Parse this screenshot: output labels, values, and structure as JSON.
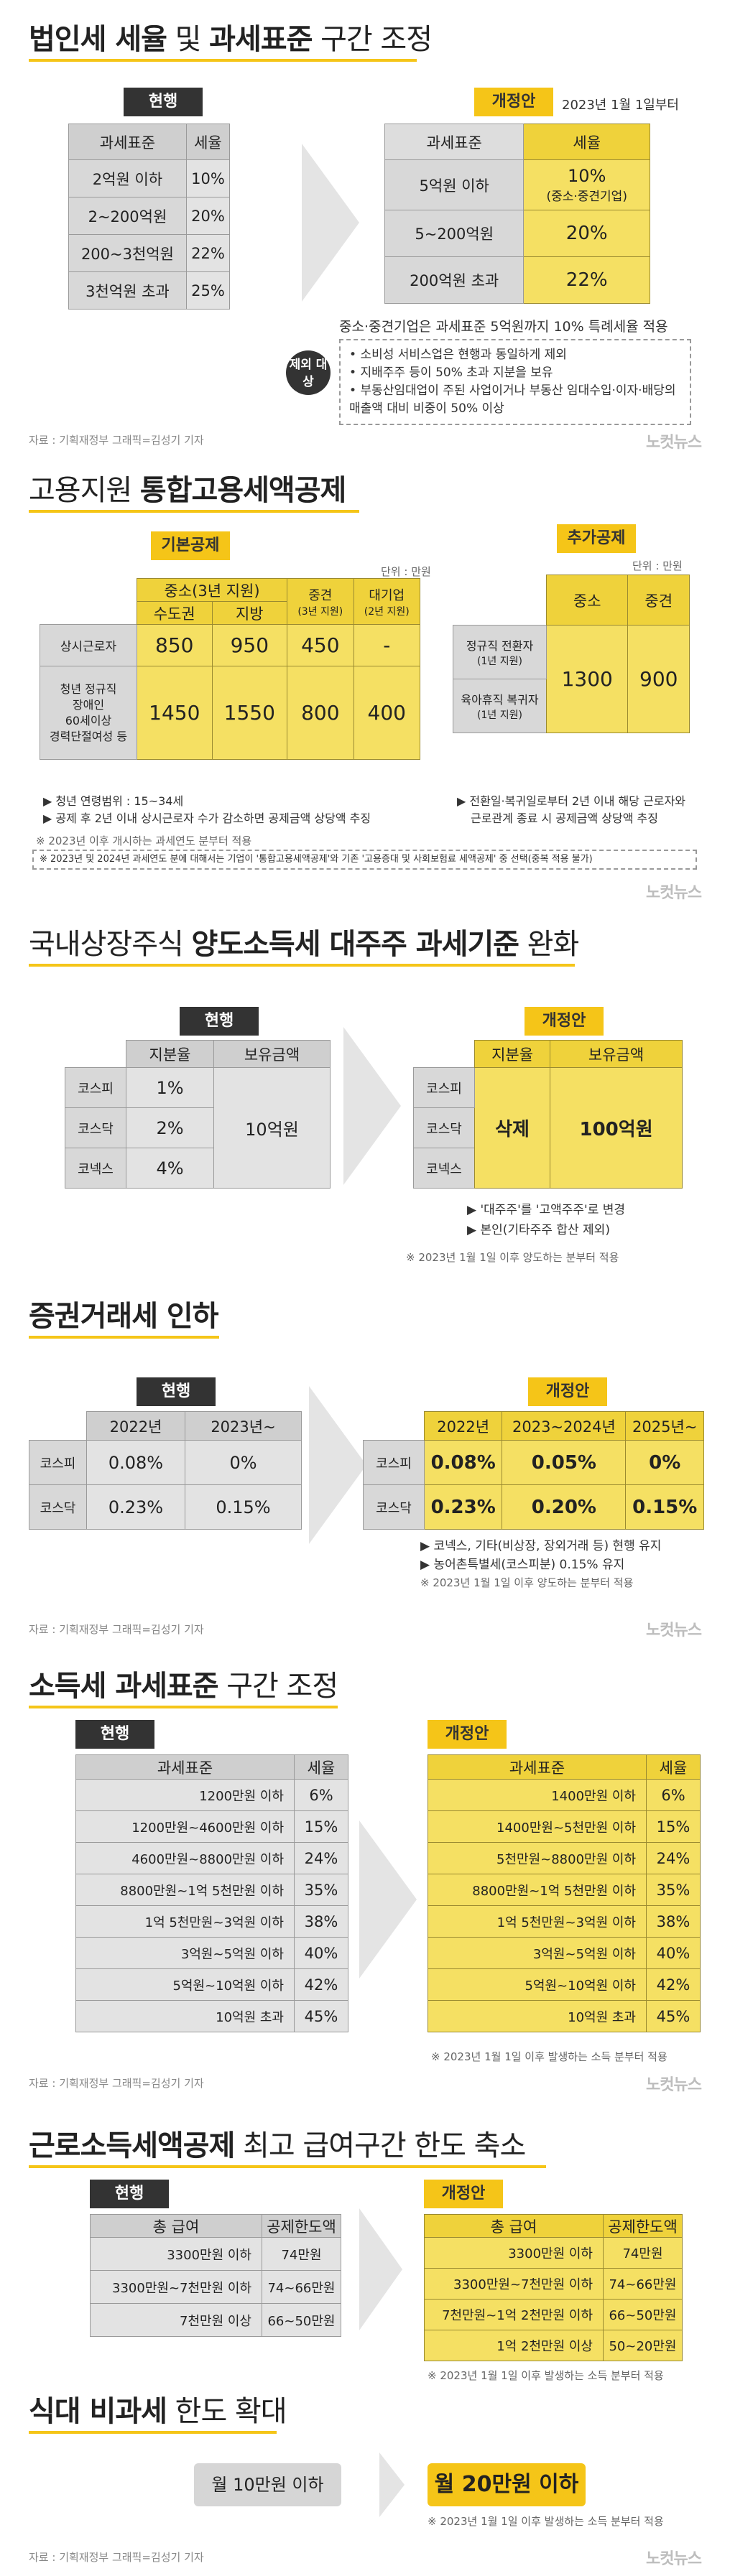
{
  "s1": {
    "title_b1": "법인세 세율",
    "title_n1": " 및 ",
    "title_b2": "과세표준",
    "title_n2": " 구간 조정",
    "cur_tag": "현행",
    "cur_headers": [
      "과세표준",
      "세율"
    ],
    "cur_rows": [
      [
        "2억원 이하",
        "10%"
      ],
      [
        "2~200억원",
        "20%"
      ],
      [
        "200~3천억원",
        "22%"
      ],
      [
        "3천억원 초과",
        "25%"
      ]
    ],
    "new_tag": "개정안",
    "new_date": "2023년 1월 1일부터",
    "new_headers": [
      "과세표준",
      "세율"
    ],
    "new_rows": [
      [
        "5억원 이하",
        "10%",
        "(중소·중견기업)"
      ],
      [
        "5~200억원",
        "20%",
        ""
      ],
      [
        "200억원 초과",
        "22%",
        ""
      ]
    ],
    "note": "중소·중견기업은 과세표준 5억원까지 10% 특례세율 적용",
    "excl_label": "제외 대상",
    "excl_items": [
      "소비성 서비스업은 현행과 동일하게 제외",
      "지배주주 등이 50% 초과 지분을 보유",
      "부동산임대업이 주된 사업이거나 부동산 임대수입·이자·배당의 매출액 대비 비중이 50% 이상"
    ],
    "source": "자료 : 기획재정부    그래픽=김성기 기자",
    "logo": "노컷뉴스"
  },
  "s2": {
    "title_n1": "고용지원 ",
    "title_b1": "통합고용세액공제",
    "basic_tag": "기본공제",
    "unit": "단위 : 만원",
    "head_top": [
      "중소(3년 지원)",
      "중견",
      "대기업"
    ],
    "head_top_sub": [
      "",
      "(3년 지원)",
      "(2년 지원)"
    ],
    "head_sub": [
      "수도권",
      "지방"
    ],
    "rows": [
      [
        "상시근로자",
        "850",
        "950",
        "450",
        "-"
      ],
      [
        "청년 정규직\n장애인\n60세이상\n경력단절여성 등",
        "1450",
        "1550",
        "800",
        "400"
      ]
    ],
    "notes": [
      "▶ 청년 연령범위 : 15~34세",
      "▶ 공제 후 2년 이내 상시근로자 수가 감소하면 공제금액 상당액 추징"
    ],
    "extra_tag": "추가공제",
    "extra_unit": "단위 : 만원",
    "extra_heads": [
      "중소",
      "중견"
    ],
    "extra_rows": [
      [
        "정규직 전환자",
        "(1년 지원)"
      ],
      [
        "육아휴직 복귀자",
        "(1년 지원)"
      ]
    ],
    "extra_vals": [
      "1300",
      "900"
    ],
    "extra_notes": [
      "▶ 전환일·복귀일로부터 2년 이내 해당 근로자와",
      "근로관계 종료 시 공제금액 상당액 추징"
    ],
    "foot1": "※ 2023년 이후 개시하는 과세연도 분부터 적용",
    "foot2": "※ 2023년 및 2024년 과세연도 분에 대해서는 기업이 '통합고용세액공제'와 기존 '고용증대 및 사회보험료 세액공제' 중 선택(중복 적용 불가)",
    "logo": "노컷뉴스"
  },
  "s3": {
    "title_n1": "국내상장주식 ",
    "title_b1": "양도소득세 대주주 과세기준",
    "title_n2": " 완화",
    "cur_tag": "현행",
    "heads": [
      "지분율",
      "보유금액"
    ],
    "markets": [
      "코스피",
      "코스닥",
      "코넥스"
    ],
    "cur_ratio": [
      "1%",
      "2%",
      "4%"
    ],
    "cur_amount": "10억원",
    "new_tag": "개정안",
    "new_ratio": "삭제",
    "new_amount": "100억원",
    "notes": [
      "▶ '대주주'를 '고액주주'로 변경",
      "▶ 본인(기타주주 합산 제외)"
    ],
    "foot": "※ 2023년 1월 1일 이후 양도하는 분부터 적용"
  },
  "s4": {
    "title_b1": "증권거래세 인하",
    "cur_tag": "현행",
    "cur_heads": [
      "2022년",
      "2023년~"
    ],
    "markets": [
      "코스피",
      "코스닥"
    ],
    "cur_rows": [
      [
        "0.08%",
        "0%"
      ],
      [
        "0.23%",
        "0.15%"
      ]
    ],
    "new_tag": "개정안",
    "new_heads": [
      "2022년",
      "2023~2024년",
      "2025년~"
    ],
    "new_rows": [
      [
        "0.08%",
        "0.05%",
        "0%"
      ],
      [
        "0.23%",
        "0.20%",
        "0.15%"
      ]
    ],
    "notes": [
      "▶ 코넥스, 기타(비상장, 장외거래 등) 현행 유지",
      "▶ 농어촌특별세(코스피분) 0.15% 유지"
    ],
    "foot": "※ 2023년 1월 1일 이후 양도하는 분부터 적용",
    "source": "자료 : 기획재정부    그래픽=김성기 기자",
    "logo": "노컷뉴스"
  },
  "s5": {
    "title_b1": "소득세 과세표준",
    "title_n1": " 구간 조정",
    "cur_tag": "현행",
    "heads": [
      "과세표준",
      "세율"
    ],
    "cur_rows": [
      [
        "1200만원 이하",
        "6%"
      ],
      [
        "1200만원~4600만원 이하",
        "15%"
      ],
      [
        "4600만원~8800만원 이하",
        "24%"
      ],
      [
        "8800만원~1억 5천만원 이하",
        "35%"
      ],
      [
        "1억 5천만원~3억원 이하",
        "38%"
      ],
      [
        "3억원~5억원 이하",
        "40%"
      ],
      [
        "5억원~10억원 이하",
        "42%"
      ],
      [
        "10억원 초과",
        "45%"
      ]
    ],
    "new_tag": "개정안",
    "new_rows": [
      [
        "1400만원 이하",
        "6%"
      ],
      [
        "1400만원~5천만원 이하",
        "15%"
      ],
      [
        "5천만원~8800만원 이하",
        "24%"
      ],
      [
        "8800만원~1억 5천만원 이하",
        "35%"
      ],
      [
        "1억 5천만원~3억원 이하",
        "38%"
      ],
      [
        "3억원~5억원 이하",
        "40%"
      ],
      [
        "5억원~10억원 이하",
        "42%"
      ],
      [
        "10억원 초과",
        "45%"
      ]
    ],
    "foot": "※ 2023년 1월 1일 이후 발생하는 소득 분부터 적용",
    "source": "자료 : 기획재정부    그래픽=김성기 기자",
    "logo": "노컷뉴스"
  },
  "s6": {
    "title_b1": "근로소득세액공제",
    "title_n1": " 최고 급여구간 한도 축소",
    "cur_tag": "현행",
    "heads": [
      "총 급여",
      "공제한도액"
    ],
    "cur_rows": [
      [
        "3300만원 이하",
        "74만원"
      ],
      [
        "3300만원~7천만원 이하",
        "74~66만원"
      ],
      [
        "7천만원 이상",
        "66~50만원"
      ]
    ],
    "new_tag": "개정안",
    "new_rows": [
      [
        "3300만원 이하",
        "74만원"
      ],
      [
        "3300만원~7천만원 이하",
        "74~66만원"
      ],
      [
        "7천만원~1억 2천만원 이하",
        "66~50만원"
      ],
      [
        "1억 2천만원 이상",
        "50~20만원"
      ]
    ],
    "foot": "※ 2023년 1월 1일 이후 발생하는 소득 분부터 적용"
  },
  "s7": {
    "title_b1": "식대 비과세",
    "title_n1": " 한도 확대",
    "cur": "월 10만원 이하",
    "new": "월 20만원 이하",
    "foot": "※ 2023년 1월 1일 이후 발생하는 소득 분부터 적용",
    "source": "자료 : 기획재정부    그래픽=김성기 기자",
    "logo": "노컷뉴스"
  }
}
